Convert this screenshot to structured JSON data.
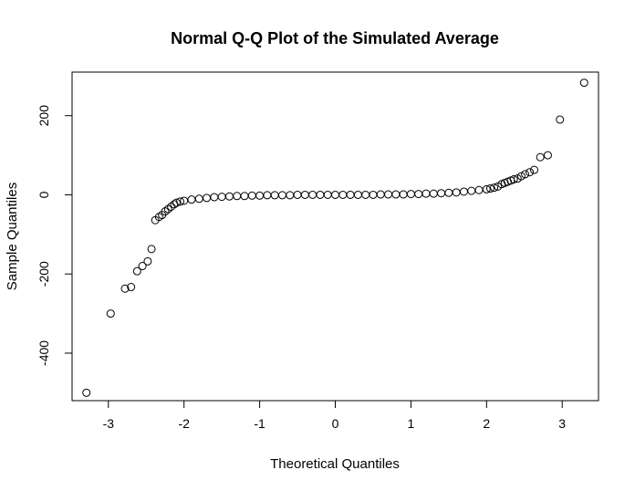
{
  "chart_data": {
    "type": "scatter",
    "title": "Normal Q-Q Plot of the Simulated Average",
    "xlabel": "Theoretical Quantiles",
    "ylabel": "Sample Quantiles",
    "xlim": [
      -3.48,
      3.48
    ],
    "ylim": [
      -520,
      310
    ],
    "x_ticks": [
      -3,
      -2,
      -1,
      0,
      1,
      2,
      3
    ],
    "x_tick_labels": [
      "-3",
      "-2",
      "-1",
      "0",
      "1",
      "2",
      "3"
    ],
    "y_ticks": [
      -400,
      -200,
      0,
      200
    ],
    "y_tick_labels": [
      "-400",
      "-200",
      "0",
      "200"
    ],
    "grid": false,
    "legend": "none",
    "point_style": "open-circle",
    "points": [
      {
        "x": -3.29,
        "y": -500
      },
      {
        "x": -2.97,
        "y": -300
      },
      {
        "x": -2.78,
        "y": -237
      },
      {
        "x": -2.7,
        "y": -233
      },
      {
        "x": -2.62,
        "y": -193
      },
      {
        "x": -2.55,
        "y": -180
      },
      {
        "x": -2.48,
        "y": -168
      },
      {
        "x": -2.43,
        "y": -137
      },
      {
        "x": -2.38,
        "y": -64
      },
      {
        "x": -2.33,
        "y": -56
      },
      {
        "x": -2.29,
        "y": -51
      },
      {
        "x": -2.25,
        "y": -42
      },
      {
        "x": -2.21,
        "y": -36
      },
      {
        "x": -2.17,
        "y": -30
      },
      {
        "x": -2.13,
        "y": -24
      },
      {
        "x": -2.1,
        "y": -20
      },
      {
        "x": -2.05,
        "y": -17
      },
      {
        "x": -2.0,
        "y": -15
      },
      {
        "x": -1.9,
        "y": -12
      },
      {
        "x": -1.8,
        "y": -10
      },
      {
        "x": -1.7,
        "y": -8
      },
      {
        "x": -1.6,
        "y": -6
      },
      {
        "x": -1.5,
        "y": -5
      },
      {
        "x": -1.4,
        "y": -4
      },
      {
        "x": -1.3,
        "y": -3
      },
      {
        "x": -1.2,
        "y": -3
      },
      {
        "x": -1.1,
        "y": -2
      },
      {
        "x": -1.0,
        "y": -2
      },
      {
        "x": -0.9,
        "y": -1
      },
      {
        "x": -0.8,
        "y": -1
      },
      {
        "x": -0.7,
        "y": -1
      },
      {
        "x": -0.6,
        "y": -1
      },
      {
        "x": -0.5,
        "y": 0
      },
      {
        "x": -0.4,
        "y": 0
      },
      {
        "x": -0.3,
        "y": 0
      },
      {
        "x": -0.2,
        "y": 0
      },
      {
        "x": -0.1,
        "y": 0
      },
      {
        "x": 0.0,
        "y": 0
      },
      {
        "x": 0.1,
        "y": 0
      },
      {
        "x": 0.2,
        "y": 0
      },
      {
        "x": 0.3,
        "y": 0
      },
      {
        "x": 0.4,
        "y": 0
      },
      {
        "x": 0.5,
        "y": 0
      },
      {
        "x": 0.6,
        "y": 1
      },
      {
        "x": 0.7,
        "y": 1
      },
      {
        "x": 0.8,
        "y": 1
      },
      {
        "x": 0.9,
        "y": 1
      },
      {
        "x": 1.0,
        "y": 2
      },
      {
        "x": 1.1,
        "y": 2
      },
      {
        "x": 1.2,
        "y": 3
      },
      {
        "x": 1.3,
        "y": 3
      },
      {
        "x": 1.4,
        "y": 4
      },
      {
        "x": 1.5,
        "y": 5
      },
      {
        "x": 1.6,
        "y": 6
      },
      {
        "x": 1.7,
        "y": 8
      },
      {
        "x": 1.8,
        "y": 10
      },
      {
        "x": 1.9,
        "y": 12
      },
      {
        "x": 2.0,
        "y": 14
      },
      {
        "x": 2.05,
        "y": 16
      },
      {
        "x": 2.1,
        "y": 18
      },
      {
        "x": 2.15,
        "y": 21
      },
      {
        "x": 2.2,
        "y": 27
      },
      {
        "x": 2.24,
        "y": 30
      },
      {
        "x": 2.28,
        "y": 33
      },
      {
        "x": 2.32,
        "y": 36
      },
      {
        "x": 2.36,
        "y": 39
      },
      {
        "x": 2.41,
        "y": 41
      },
      {
        "x": 2.46,
        "y": 47
      },
      {
        "x": 2.51,
        "y": 52
      },
      {
        "x": 2.57,
        "y": 57
      },
      {
        "x": 2.63,
        "y": 63
      },
      {
        "x": 2.71,
        "y": 95
      },
      {
        "x": 2.81,
        "y": 100
      },
      {
        "x": 2.97,
        "y": 190
      },
      {
        "x": 3.29,
        "y": 283
      }
    ]
  }
}
